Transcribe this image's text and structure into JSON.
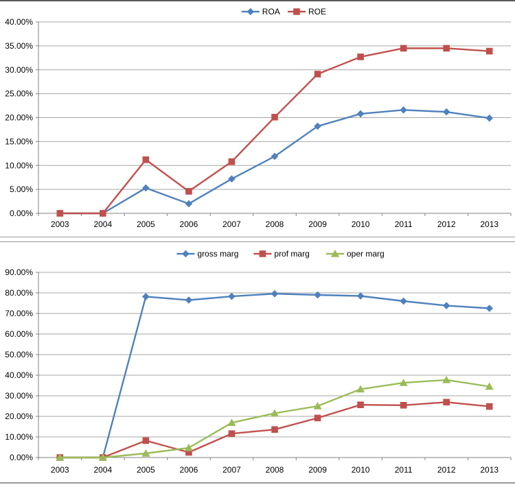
{
  "page": {
    "background": "#FFFFFF",
    "frame_color": "#999999"
  },
  "palette": {
    "blue": "#4F81BD",
    "red": "#C0504D",
    "green": "#9BBB59",
    "gridline": "#A6A6A6",
    "axis": "#808080",
    "text": "#000000"
  },
  "chart_data": [
    {
      "type": "line",
      "title": "",
      "categories": [
        "2003",
        "2004",
        "2005",
        "2006",
        "2007",
        "2008",
        "2009",
        "2010",
        "2011",
        "2012",
        "2013"
      ],
      "series": [
        {
          "name": "ROA",
          "color": "#4F81BD",
          "marker": "diamond",
          "values": [
            0.0,
            0.0,
            5.3,
            2.0,
            7.2,
            11.9,
            18.2,
            20.8,
            21.6,
            21.2,
            19.9
          ]
        },
        {
          "name": "ROE",
          "color": "#C0504D",
          "marker": "square",
          "values": [
            0.0,
            0.0,
            11.2,
            4.6,
            10.8,
            20.1,
            29.1,
            32.7,
            34.5,
            34.5,
            33.9
          ]
        }
      ],
      "xlabel": "",
      "ylabel": "",
      "ylim": [
        0,
        40
      ],
      "ytick_step": 5,
      "ytick_labels": [
        "0.00%",
        "5.00%",
        "10.00%",
        "15.00%",
        "20.00%",
        "25.00%",
        "30.00%",
        "35.00%",
        "40.00%"
      ],
      "grid": true,
      "legend_position": "top"
    },
    {
      "type": "line",
      "title": "",
      "categories": [
        "2003",
        "2004",
        "2005",
        "2006",
        "2007",
        "2008",
        "2009",
        "2010",
        "2011",
        "2012",
        "2013"
      ],
      "series": [
        {
          "name": "gross marg",
          "color": "#4F81BD",
          "marker": "diamond",
          "values": [
            0.0,
            0.0,
            78.2,
            76.5,
            78.3,
            79.6,
            79.0,
            78.5,
            76.0,
            73.8,
            72.5
          ]
        },
        {
          "name": "prof marg",
          "color": "#C0504D",
          "marker": "square",
          "values": [
            0.0,
            0.0,
            8.2,
            2.5,
            11.6,
            13.6,
            19.2,
            25.6,
            25.4,
            26.9,
            24.8
          ]
        },
        {
          "name": "oper marg",
          "color": "#9BBB59",
          "marker": "triangle",
          "values": [
            0.0,
            0.0,
            2.0,
            4.7,
            16.9,
            21.5,
            25.0,
            33.2,
            36.3,
            37.7,
            34.5
          ]
        }
      ],
      "xlabel": "",
      "ylabel": "",
      "ylim": [
        0,
        90
      ],
      "ytick_step": 10,
      "ytick_labels": [
        "0.00%",
        "10.00%",
        "20.00%",
        "30.00%",
        "40.00%",
        "50.00%",
        "60.00%",
        "70.00%",
        "80.00%",
        "90.00%"
      ],
      "grid": true,
      "legend_position": "top"
    }
  ]
}
